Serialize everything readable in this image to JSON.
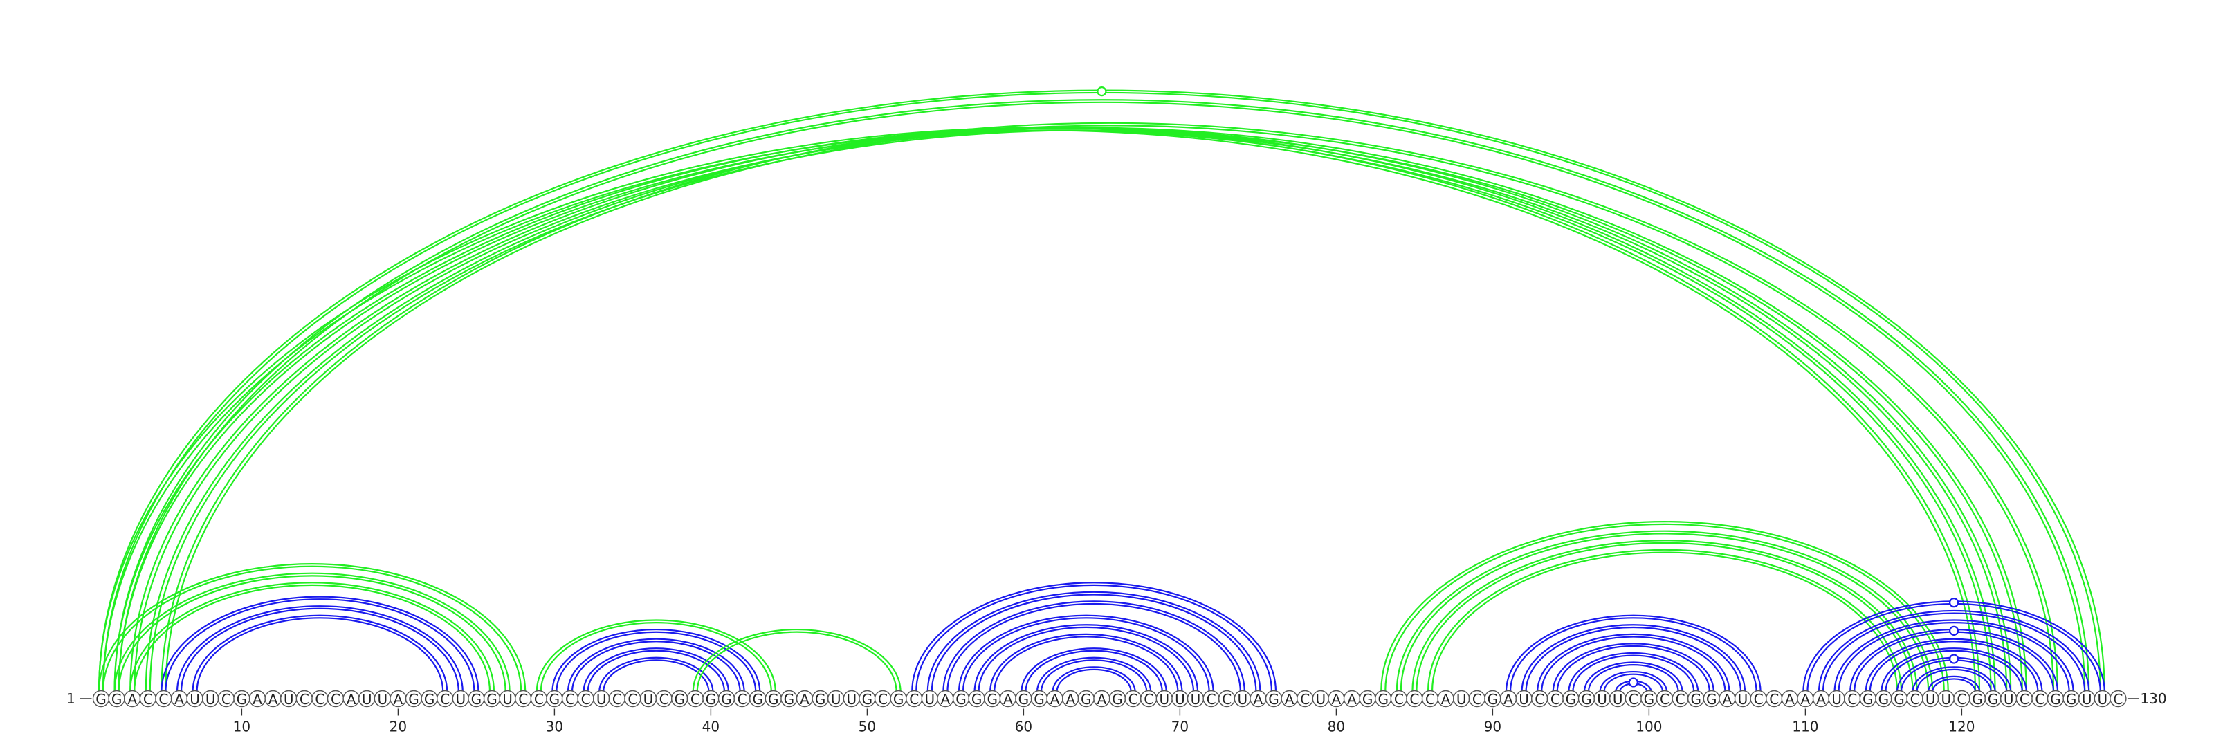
{
  "sequence": "GGACCAUUCGAAUCCCAUUAGGCUGGUCCGCCUCCUCGCGGCGGGAGUUGCGCUAGGGAGGAAGAGCCUUUCCUAGACUAAGGCCCAUCGAUCCGGUUCGCCGGAUCCAAAUCGGGCUUCGGUCCGGUUC",
  "length": 130,
  "start_label": "1",
  "end_label": "130",
  "tick_labels": [
    "10",
    "20",
    "30",
    "40",
    "50",
    "60",
    "70",
    "80",
    "90",
    "100",
    "110",
    "120"
  ],
  "colors": {
    "green": "#22ee22",
    "blue": "#1a1aee",
    "backbone": "#555555"
  },
  "arcs": [
    {
      "i": 1,
      "j": 129,
      "color": "green"
    },
    {
      "i": 2,
      "j": 128,
      "color": "green"
    },
    {
      "i": 1,
      "j": 121,
      "color": "green"
    },
    {
      "i": 2,
      "j": 122,
      "color": "green"
    },
    {
      "i": 3,
      "j": 123,
      "color": "green"
    },
    {
      "i": 4,
      "j": 124,
      "color": "green"
    },
    {
      "i": 5,
      "j": 126,
      "color": "green"
    },
    {
      "i": 1,
      "j": 28,
      "color": "green"
    },
    {
      "i": 2,
      "j": 27,
      "color": "green"
    },
    {
      "i": 3,
      "j": 26,
      "color": "green"
    },
    {
      "i": 5,
      "j": 25,
      "color": "blue"
    },
    {
      "i": 6,
      "j": 24,
      "color": "blue"
    },
    {
      "i": 7,
      "j": 23,
      "color": "blue"
    },
    {
      "i": 29,
      "j": 44,
      "color": "green"
    },
    {
      "i": 30,
      "j": 43,
      "color": "blue"
    },
    {
      "i": 31,
      "j": 42,
      "color": "blue"
    },
    {
      "i": 32,
      "j": 41,
      "color": "blue"
    },
    {
      "i": 33,
      "j": 40,
      "color": "blue"
    },
    {
      "i": 39,
      "j": 52,
      "color": "green"
    },
    {
      "i": 53,
      "j": 76,
      "color": "blue"
    },
    {
      "i": 54,
      "j": 75,
      "color": "blue"
    },
    {
      "i": 55,
      "j": 74,
      "color": "blue"
    },
    {
      "i": 56,
      "j": 72,
      "color": "blue"
    },
    {
      "i": 57,
      "j": 71,
      "color": "blue"
    },
    {
      "i": 58,
      "j": 70,
      "color": "blue"
    },
    {
      "i": 60,
      "j": 69,
      "color": "blue"
    },
    {
      "i": 61,
      "j": 68,
      "color": "blue"
    },
    {
      "i": 62,
      "j": 67,
      "color": "blue"
    },
    {
      "i": 83,
      "j": 119,
      "color": "green"
    },
    {
      "i": 84,
      "j": 118,
      "color": "green"
    },
    {
      "i": 85,
      "j": 117,
      "color": "green"
    },
    {
      "i": 86,
      "j": 116,
      "color": "green"
    },
    {
      "i": 91,
      "j": 107,
      "color": "blue"
    },
    {
      "i": 92,
      "j": 106,
      "color": "blue"
    },
    {
      "i": 93,
      "j": 105,
      "color": "blue"
    },
    {
      "i": 94,
      "j": 104,
      "color": "blue"
    },
    {
      "i": 95,
      "j": 103,
      "color": "blue"
    },
    {
      "i": 96,
      "j": 102,
      "color": "blue"
    },
    {
      "i": 97,
      "j": 101,
      "color": "blue"
    },
    {
      "i": 98,
      "j": 100,
      "color": "blue"
    },
    {
      "i": 110,
      "j": 129,
      "color": "blue"
    },
    {
      "i": 111,
      "j": 128,
      "color": "blue"
    },
    {
      "i": 112,
      "j": 127,
      "color": "blue"
    },
    {
      "i": 113,
      "j": 126,
      "color": "blue"
    },
    {
      "i": 114,
      "j": 125,
      "color": "blue"
    },
    {
      "i": 115,
      "j": 124,
      "color": "blue"
    },
    {
      "i": 116,
      "j": 123,
      "color": "blue"
    },
    {
      "i": 117,
      "j": 122,
      "color": "blue"
    },
    {
      "i": 118,
      "j": 121,
      "color": "blue"
    }
  ],
  "markers": [
    {
      "i": 1,
      "j": 129,
      "color": "green"
    },
    {
      "i": 110,
      "j": 129,
      "color": "blue"
    },
    {
      "i": 113,
      "j": 126,
      "color": "blue"
    },
    {
      "i": 116,
      "j": 123,
      "color": "blue"
    },
    {
      "i": 98,
      "j": 100,
      "color": "blue"
    }
  ]
}
